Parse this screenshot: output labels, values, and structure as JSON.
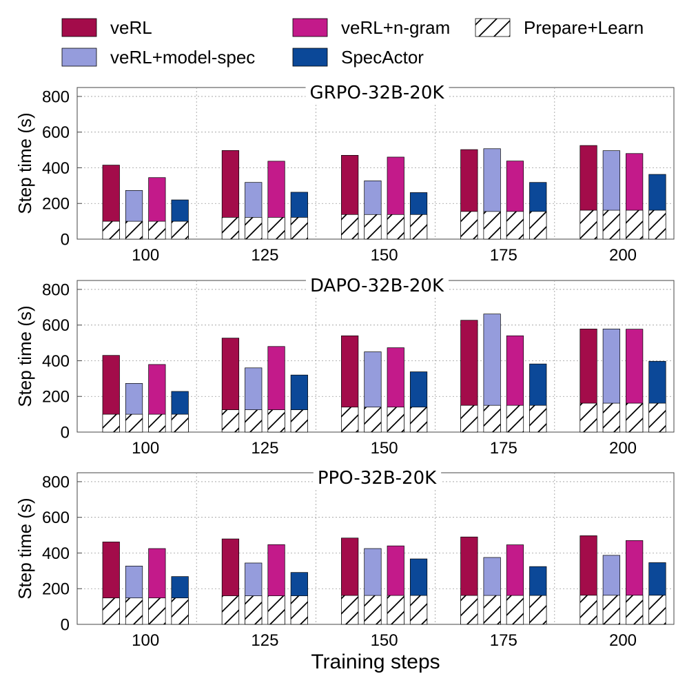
{
  "colors": {
    "veRL": "#a30c4a",
    "veRL+model-spec": "#959cdc",
    "veRL+n-gram": "#c31a8a",
    "SpecActor": "#0b4898",
    "grid": "#9a9a9a"
  },
  "legend": [
    {
      "key": "veRL",
      "label": "veRL",
      "kind": "solid"
    },
    {
      "key": "veRL+n-gram",
      "label": "veRL+n-gram",
      "kind": "solid"
    },
    {
      "key": "Prepare+Learn",
      "label": "Prepare+Learn",
      "kind": "hatch"
    },
    {
      "key": "veRL+model-spec",
      "label": "veRL+model-spec",
      "kind": "solid"
    },
    {
      "key": "SpecActor",
      "label": "SpecActor",
      "kind": "solid"
    }
  ],
  "chart_data": [
    {
      "type": "bar",
      "title": "GRPO-32B-20K",
      "ylabel": "Step time (s)",
      "xlabel": "",
      "ylim": [
        0,
        850
      ],
      "yticks": [
        0,
        200,
        400,
        600,
        800
      ],
      "categories": [
        "100",
        "125",
        "150",
        "175",
        "200"
      ],
      "series": [
        {
          "name": "veRL",
          "values": [
            415,
            497,
            470,
            502,
            525
          ]
        },
        {
          "name": "veRL+model-spec",
          "values": [
            273,
            318,
            327,
            507,
            496
          ]
        },
        {
          "name": "veRL+n-gram",
          "values": [
            345,
            437,
            460,
            438,
            480
          ]
        },
        {
          "name": "SpecActor",
          "values": [
            220,
            263,
            261,
            318,
            363
          ]
        }
      ],
      "prepare_learn": [
        100,
        122,
        138,
        155,
        162
      ]
    },
    {
      "type": "bar",
      "title": "DAPO-32B-20K",
      "ylabel": "Step time (s)",
      "xlabel": "",
      "ylim": [
        0,
        850
      ],
      "yticks": [
        0,
        200,
        400,
        600,
        800
      ],
      "categories": [
        "100",
        "125",
        "150",
        "175",
        "200"
      ],
      "series": [
        {
          "name": "veRL",
          "values": [
            430,
            527,
            540,
            627,
            578
          ]
        },
        {
          "name": "veRL+model-spec",
          "values": [
            273,
            360,
            450,
            662,
            578
          ]
        },
        {
          "name": "veRL+n-gram",
          "values": [
            379,
            480,
            473,
            540,
            577
          ]
        },
        {
          "name": "SpecActor",
          "values": [
            228,
            320,
            338,
            382,
            397
          ]
        }
      ],
      "prepare_learn": [
        100,
        125,
        140,
        150,
        162
      ]
    },
    {
      "type": "bar",
      "title": "PPO-32B-20K",
      "ylabel": "Step time (s)",
      "xlabel": "Training steps",
      "ylim": [
        0,
        850
      ],
      "yticks": [
        0,
        200,
        400,
        600,
        800
      ],
      "categories": [
        "100",
        "125",
        "150",
        "175",
        "200"
      ],
      "series": [
        {
          "name": "veRL",
          "values": [
            462,
            479,
            484,
            490,
            497
          ]
        },
        {
          "name": "veRL+model-spec",
          "values": [
            327,
            344,
            425,
            375,
            387
          ]
        },
        {
          "name": "veRL+n-gram",
          "values": [
            425,
            447,
            440,
            446,
            470
          ]
        },
        {
          "name": "SpecActor",
          "values": [
            268,
            291,
            367,
            324,
            346
          ]
        }
      ],
      "prepare_learn": [
        148,
        160,
        162,
        162,
        163
      ]
    }
  ]
}
